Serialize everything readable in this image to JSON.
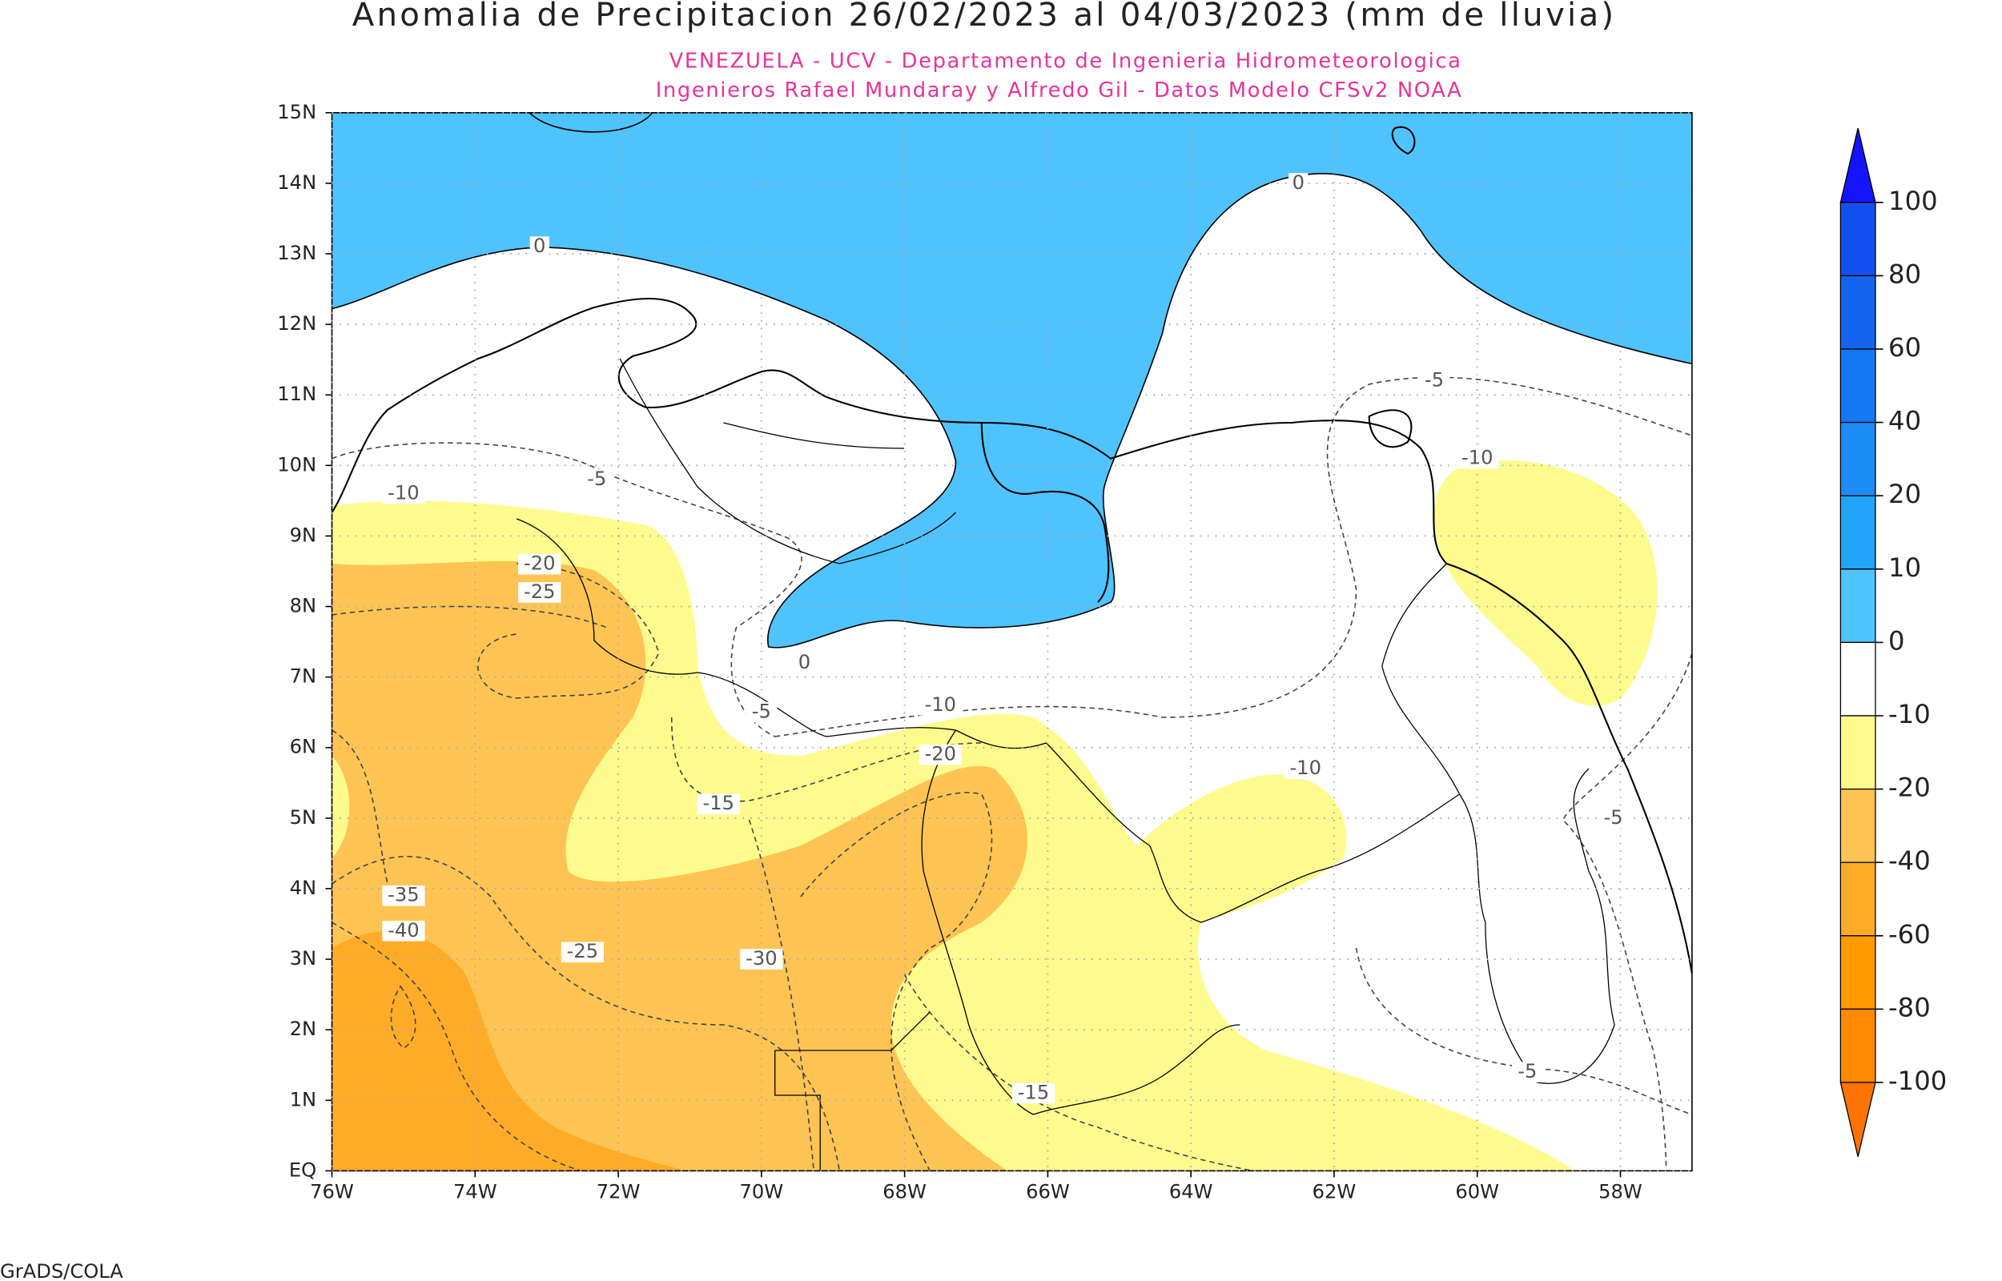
{
  "chart_data": {
    "type": "map",
    "title": "Anomalia de Precipitacion 26/02/2023 al 04/03/2023 (mm de lluvia)",
    "subtitle": [
      "VENEZUELA - UCV - Departamento de Ingenieria Hidrometeorologica",
      "Ingenieros Rafael Mundaray y Alfredo Gil - Datos Modelo CFSv2 NOAA"
    ],
    "footer": "GrADS/COLA",
    "xlim": [
      -76,
      -57
    ],
    "ylim": [
      0,
      15
    ],
    "xticks": [
      {
        "value": -76,
        "label": "76W"
      },
      {
        "value": -74,
        "label": "74W"
      },
      {
        "value": -72,
        "label": "72W"
      },
      {
        "value": -70,
        "label": "70W"
      },
      {
        "value": -68,
        "label": "68W"
      },
      {
        "value": -66,
        "label": "66W"
      },
      {
        "value": -64,
        "label": "64W"
      },
      {
        "value": -62,
        "label": "62W"
      },
      {
        "value": -60,
        "label": "60W"
      },
      {
        "value": -58,
        "label": "58W"
      }
    ],
    "yticks": [
      {
        "value": 0,
        "label": "EQ"
      },
      {
        "value": 1,
        "label": "1N"
      },
      {
        "value": 2,
        "label": "2N"
      },
      {
        "value": 3,
        "label": "3N"
      },
      {
        "value": 4,
        "label": "4N"
      },
      {
        "value": 5,
        "label": "5N"
      },
      {
        "value": 6,
        "label": "6N"
      },
      {
        "value": 7,
        "label": "7N"
      },
      {
        "value": 8,
        "label": "8N"
      },
      {
        "value": 9,
        "label": "9N"
      },
      {
        "value": 10,
        "label": "10N"
      },
      {
        "value": 11,
        "label": "11N"
      },
      {
        "value": 12,
        "label": "12N"
      },
      {
        "value": 13,
        "label": "13N"
      },
      {
        "value": 14,
        "label": "14N"
      },
      {
        "value": 15,
        "label": "15N"
      }
    ],
    "grid": true,
    "colorbar": {
      "levels": [
        100,
        80,
        60,
        40,
        20,
        10,
        0,
        -10,
        -20,
        -40,
        -60,
        -80,
        -100
      ],
      "colors": [
        "#1414ff",
        "#1450f0",
        "#1464f0",
        "#1478f5",
        "#1e8cf5",
        "#22a5f8",
        "#4fc3fd",
        "#ffffff",
        "#fefb8e",
        "#fec453",
        "#feab28",
        "#ff9a00",
        "#ff8a00",
        "#ff7300"
      ]
    },
    "contour_labels": [
      {
        "value": 0,
        "lon": -73.1,
        "lat": 13.1
      },
      {
        "value": 0,
        "lon": -62.5,
        "lat": 14.0
      },
      {
        "value": -5,
        "lon": -60.6,
        "lat": 11.2
      },
      {
        "value": -10,
        "lon": -60.0,
        "lat": 10.1
      },
      {
        "value": -5,
        "lon": -72.3,
        "lat": 9.8
      },
      {
        "value": -10,
        "lon": -75.0,
        "lat": 9.6
      },
      {
        "value": -20,
        "lon": -73.1,
        "lat": 8.6
      },
      {
        "value": -25,
        "lon": -73.1,
        "lat": 8.2
      },
      {
        "value": 0,
        "lon": -69.4,
        "lat": 7.2
      },
      {
        "value": -5,
        "lon": -70.0,
        "lat": 6.5
      },
      {
        "value": -10,
        "lon": -67.5,
        "lat": 6.6
      },
      {
        "value": -20,
        "lon": -67.5,
        "lat": 5.9
      },
      {
        "value": -10,
        "lon": -62.4,
        "lat": 5.7
      },
      {
        "value": -15,
        "lon": -70.6,
        "lat": 5.2
      },
      {
        "value": -5,
        "lon": -58.1,
        "lat": 5.0
      },
      {
        "value": -35,
        "lon": -75.0,
        "lat": 3.9
      },
      {
        "value": -40,
        "lon": -75.0,
        "lat": 3.4
      },
      {
        "value": -25,
        "lon": -72.5,
        "lat": 3.1
      },
      {
        "value": -30,
        "lon": -70.0,
        "lat": 3.0
      },
      {
        "value": -15,
        "lon": -66.2,
        "lat": 1.1
      },
      {
        "value": -5,
        "lon": -59.3,
        "lat": 1.4
      }
    ]
  }
}
